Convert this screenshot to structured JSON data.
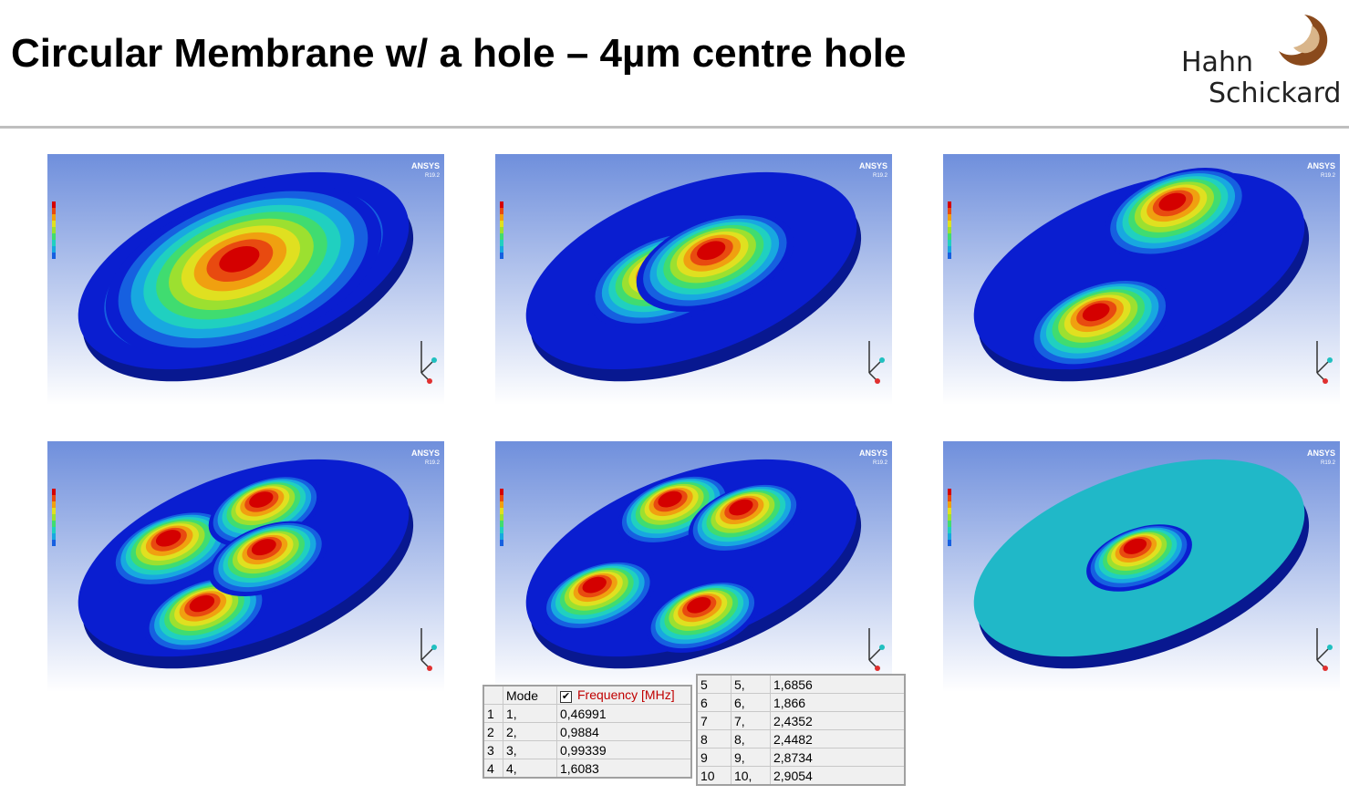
{
  "header": {
    "title": "Circular Membrane w/ a hole – 4µm centre hole"
  },
  "logo": {
    "line1": "Hahn",
    "line2": "Schickard"
  },
  "panels": [
    {
      "brand": "ANSYS",
      "version": "R19.2"
    },
    {
      "brand": "ANSYS",
      "version": "R19.2"
    },
    {
      "brand": "ANSYS",
      "version": "R19.2"
    },
    {
      "brand": "ANSYS",
      "version": "R19.2"
    },
    {
      "brand": "ANSYS",
      "version": "R19.2"
    },
    {
      "brand": "ANSYS",
      "version": "R19.2"
    }
  ],
  "table1": {
    "header": [
      "Mode",
      "Frequency [MHz]"
    ],
    "rows": [
      [
        "1",
        "1,",
        "0,46991"
      ],
      [
        "2",
        "2,",
        "0,9884"
      ],
      [
        "3",
        "3,",
        "0,99339"
      ],
      [
        "4",
        "4,",
        "1,6083"
      ]
    ]
  },
  "table2": {
    "rows": [
      [
        "5",
        "5,",
        "1,6856"
      ],
      [
        "6",
        "6,",
        "1,866"
      ],
      [
        "7",
        "7,",
        "2,4352"
      ],
      [
        "8",
        "8,",
        "2,4482"
      ],
      [
        "9",
        "9,",
        "2,8734"
      ],
      [
        "10",
        "10,",
        "2,9054"
      ]
    ]
  }
}
